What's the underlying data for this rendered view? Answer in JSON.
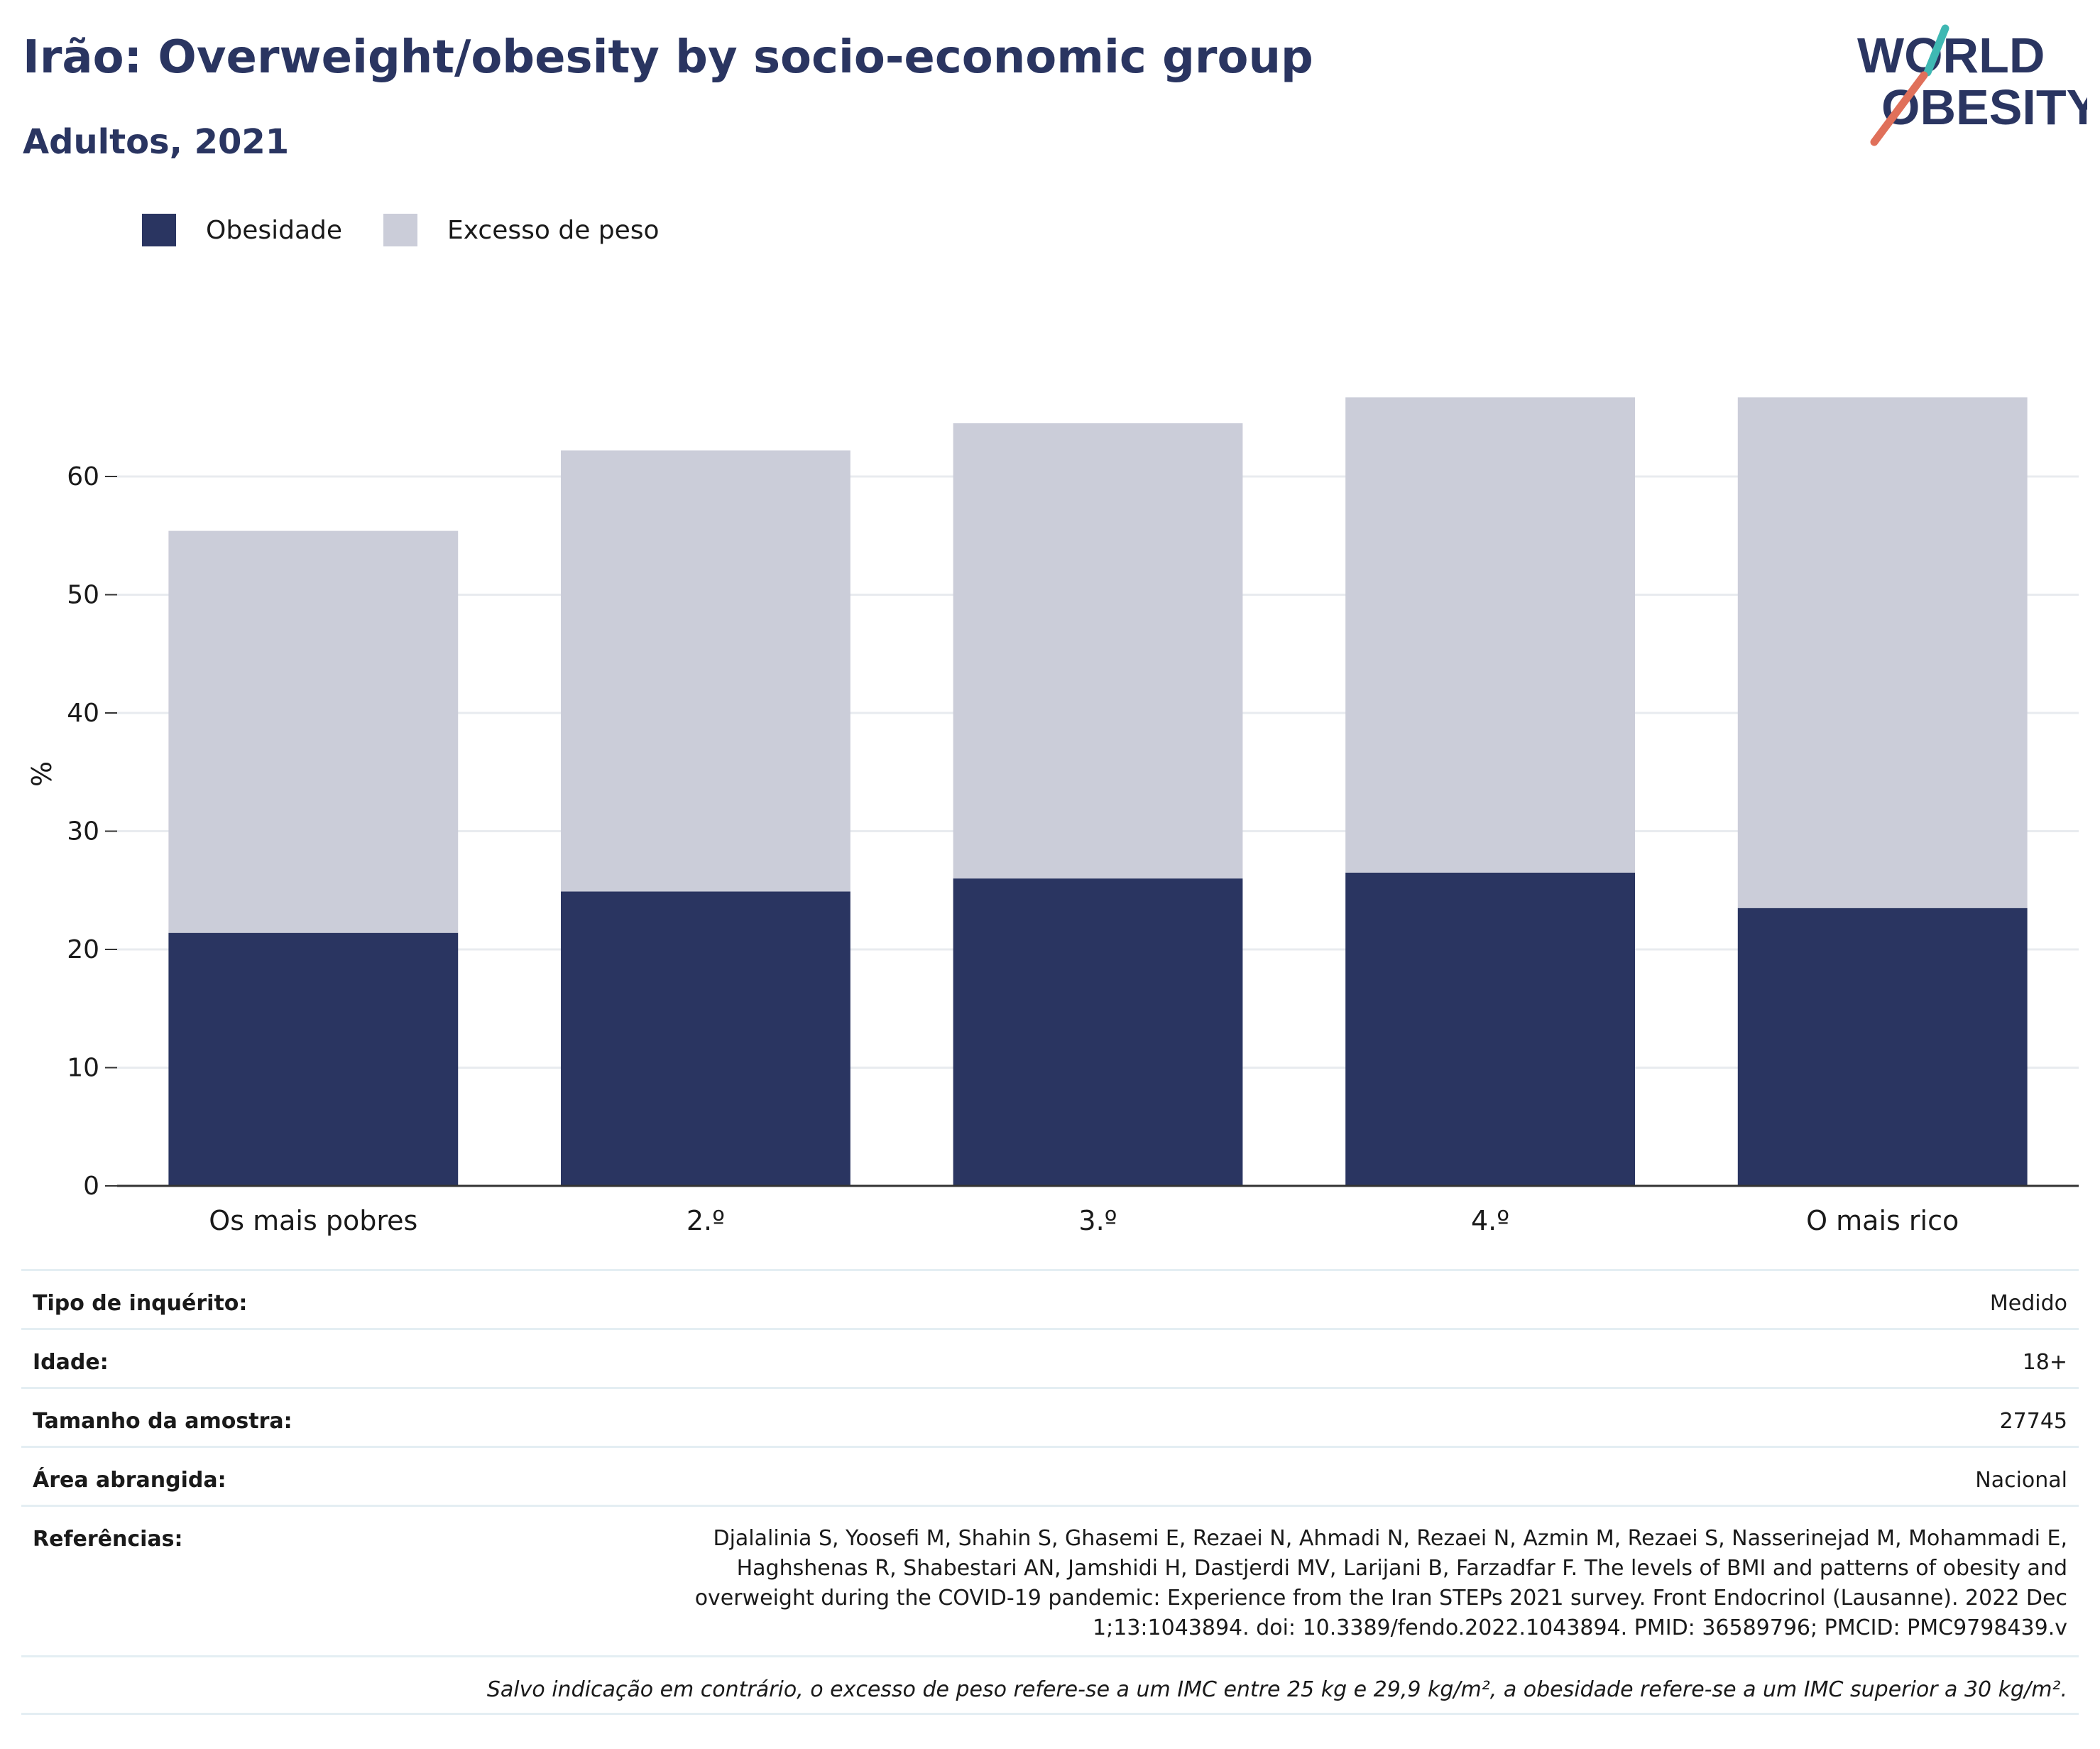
{
  "header": {
    "title": "Irão: Overweight/obesity by socio-economic group",
    "subtitle": "Adultos, 2021",
    "logo_text": [
      "WORLD",
      "OBESITY"
    ]
  },
  "colors": {
    "obesity": "#2a3561",
    "overweight": "#cbcdd9",
    "title": "#2a3561",
    "logo_teal": "#3fb8b3",
    "logo_coral": "#e0705a"
  },
  "legend": [
    {
      "label": "Obesidade",
      "color": "#2a3561"
    },
    {
      "label": "Excesso de peso",
      "color": "#cbcdd9"
    }
  ],
  "chart_data": {
    "type": "bar",
    "stacked": true,
    "categories": [
      "Os mais pobres",
      "2.º",
      "3.º",
      "4.º",
      "O mais rico"
    ],
    "series": [
      {
        "name": "Obesidade",
        "values": [
          21.4,
          24.9,
          26.0,
          26.5,
          23.5
        ]
      },
      {
        "name": "Excesso de peso",
        "values": [
          34.0,
          37.3,
          38.5,
          40.2,
          43.2
        ]
      }
    ],
    "ylabel": "%",
    "ylim": [
      0,
      70
    ],
    "yticks": [
      0,
      10,
      20,
      30,
      40,
      50,
      60
    ],
    "grid": true,
    "legend_position": "top-left"
  },
  "meta": [
    {
      "key": "Tipo de inquérito:",
      "value": "Medido"
    },
    {
      "key": "Idade:",
      "value": "18+"
    },
    {
      "key": "Tamanho da amostra:",
      "value": "27745"
    },
    {
      "key": "Área abrangida:",
      "value": "Nacional"
    }
  ],
  "references": {
    "key": "Referências:",
    "lines": [
      "Djalalinia S, Yoosefi M, Shahin S, Ghasemi E, Rezaei N, Ahmadi N, Rezaei N, Azmin M, Rezaei S, Nasserinejad M, Mohammadi E,",
      "Haghshenas R, Shabestari AN, Jamshidi H, Dastjerdi MV, Larijani B, Farzadfar F. The levels of BMI and patterns of obesity and",
      "overweight during the COVID-19 pandemic: Experience from the Iran STEPs 2021 survey. Front Endocrinol (Lausanne). 2022 Dec",
      "1;13:1043894. doi: 10.3389/fendo.2022.1043894. PMID: 36589796; PMCID: PMC9798439.v"
    ]
  },
  "note": "Salvo indicação em contrário, o excesso de peso refere-se a um IMC entre 25 kg e 29,9 kg/m², a obesidade refere-se a um IMC superior a 30 kg/m²."
}
